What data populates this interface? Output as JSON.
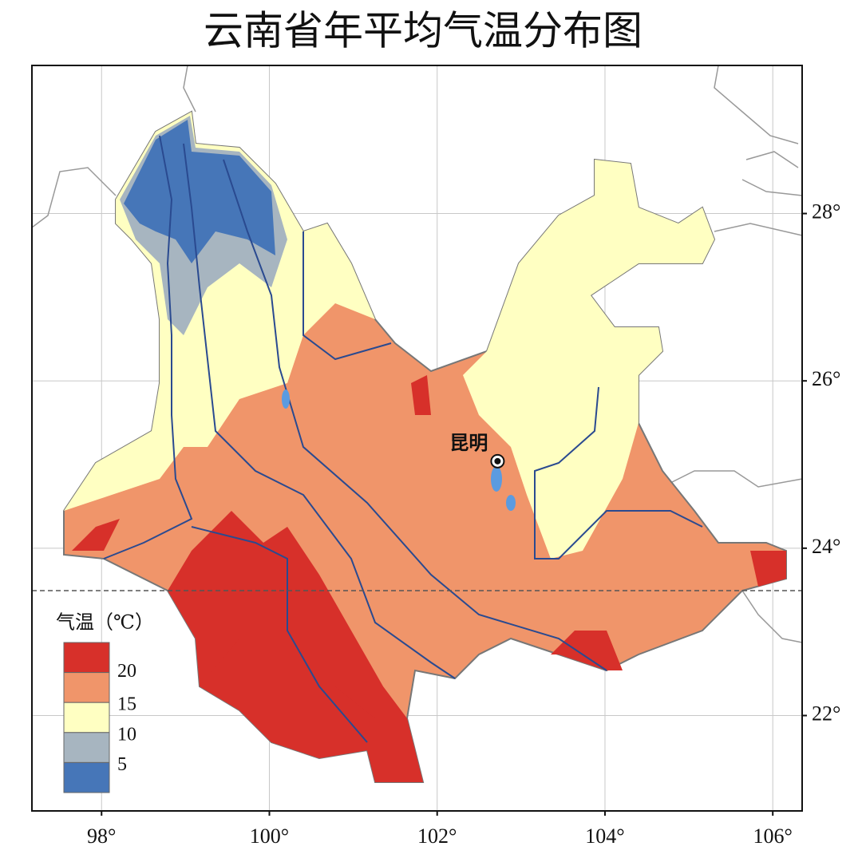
{
  "map": {
    "title": "云南省年平均气温分布图",
    "xlim": [
      97.17,
      106.35
    ],
    "ylim": [
      20.86,
      29.77
    ],
    "xticks": [
      {
        "value": 98,
        "label": "98°"
      },
      {
        "value": 100,
        "label": "100°"
      },
      {
        "value": 102,
        "label": "102°"
      },
      {
        "value": 104,
        "label": "104°"
      },
      {
        "value": 106,
        "label": "106°"
      }
    ],
    "yticks": [
      {
        "value": 22,
        "label": "22°"
      },
      {
        "value": 24,
        "label": "24°"
      },
      {
        "value": 26,
        "label": "26°"
      },
      {
        "value": 28,
        "label": "28°"
      }
    ],
    "grid": true,
    "legend": {
      "title": "气温（℃）",
      "colors": [
        "#d7302a",
        "#f0956a",
        "#ffffc2",
        "#a7b5c0",
        "#4676b8"
      ],
      "breaks": [
        20,
        15,
        10,
        5
      ]
    },
    "city": {
      "name": "昆明",
      "lon": 102.72,
      "lat": 25.04
    }
  }
}
